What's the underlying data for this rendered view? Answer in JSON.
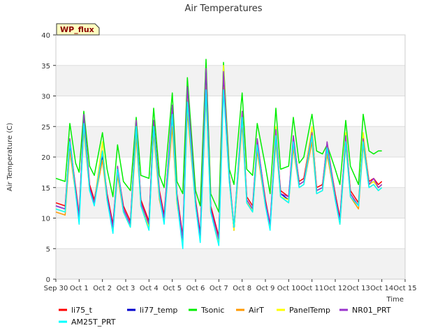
{
  "chart_data": {
    "type": "line",
    "title": "Air Temperatures",
    "xlabel": "Time",
    "ylabel": "Air Temperature (C)",
    "ylim": [
      0,
      40
    ],
    "xlim": [
      "Sep 30",
      "Oct 15"
    ],
    "yticks": [
      0,
      5,
      10,
      15,
      20,
      25,
      30,
      35,
      40
    ],
    "xticks": [
      "Sep 30",
      "Oct 1",
      "Oct 2",
      "Oct 3",
      "Oct 4",
      "Oct 5",
      "Oct 6",
      "Oct 7",
      "Oct 8",
      "Oct 9",
      "Oct 10",
      "Oct 11",
      "Oct 12",
      "Oct 13",
      "Oct 14",
      "Oct 15"
    ],
    "grid": "horizontal bands",
    "legend_position": "bottom",
    "badge": "WP_flux",
    "x_days": [
      0.0,
      0.4,
      0.6,
      0.85,
      1.0,
      1.2,
      1.45,
      1.65,
      2.0,
      2.2,
      2.45,
      2.65,
      2.9,
      3.2,
      3.45,
      3.65,
      4.0,
      4.2,
      4.45,
      4.65,
      5.0,
      5.2,
      5.45,
      5.65,
      6.0,
      6.2,
      6.45,
      6.65,
      7.0,
      7.2,
      7.45,
      7.65,
      8.0,
      8.2,
      8.45,
      8.65,
      9.0,
      9.2,
      9.45,
      9.65,
      10.0,
      10.2,
      10.45,
      10.65,
      11.0,
      11.2,
      11.45,
      11.65,
      12.0,
      12.2,
      12.45,
      12.65,
      13.0,
      13.2,
      13.45,
      13.65,
      13.85,
      14.0
    ],
    "series": [
      {
        "name": "li75_t",
        "color": "#ff0000",
        "values": [
          12.5,
          12.0,
          22.5,
          15.0,
          10.5,
          26.5,
          15.5,
          13.0,
          20.5,
          14.0,
          9.0,
          18.0,
          12.0,
          9.5,
          25.5,
          13.0,
          9.5,
          26.0,
          14.5,
          10.5,
          27.5,
          14.0,
          7.0,
          30.0,
          13.0,
          7.5,
          33.0,
          12.0,
          7.0,
          34.0,
          17.0,
          8.5,
          27.0,
          13.5,
          12.0,
          22.5,
          13.0,
          9.0,
          24.0,
          14.5,
          13.5,
          23.0,
          16.0,
          16.5,
          24.5,
          15.0,
          15.5,
          22.0,
          14.0,
          10.0,
          23.5,
          14.5,
          12.5,
          23.5,
          16.0,
          16.5,
          15.5,
          16.0
        ]
      },
      {
        "name": "li77_temp",
        "color": "#0000cc",
        "values": [
          12.0,
          11.5,
          22.0,
          14.5,
          10.0,
          26.0,
          15.0,
          12.5,
          20.0,
          13.5,
          8.5,
          17.5,
          11.5,
          9.0,
          25.0,
          12.5,
          9.0,
          25.5,
          14.0,
          10.0,
          27.0,
          13.5,
          6.5,
          29.5,
          12.5,
          7.0,
          32.5,
          11.5,
          6.5,
          33.5,
          16.5,
          8.0,
          26.5,
          13.0,
          11.5,
          22.0,
          12.5,
          8.5,
          23.5,
          14.0,
          13.0,
          22.5,
          15.5,
          16.0,
          24.0,
          14.5,
          15.0,
          21.5,
          13.5,
          9.5,
          23.0,
          14.0,
          12.0,
          23.0,
          15.5,
          16.0,
          15.0,
          15.5
        ]
      },
      {
        "name": "Tsonic",
        "color": "#00ee00",
        "values": [
          16.5,
          16.0,
          25.5,
          19.0,
          17.5,
          27.5,
          18.5,
          17.0,
          24.0,
          18.0,
          13.5,
          22.0,
          16.0,
          14.5,
          26.5,
          17.0,
          16.5,
          28.0,
          17.0,
          15.0,
          30.5,
          16.0,
          14.0,
          33.0,
          14.5,
          12.0,
          36.0,
          14.0,
          11.0,
          35.5,
          18.0,
          15.5,
          30.5,
          18.0,
          17.0,
          25.5,
          18.5,
          14.0,
          28.0,
          18.0,
          18.5,
          26.5,
          19.0,
          20.0,
          27.0,
          21.0,
          20.5,
          22.0,
          18.0,
          15.5,
          26.0,
          18.5,
          15.5,
          27.0,
          21.0,
          20.5,
          21.0,
          21.0
        ]
      },
      {
        "name": "AirT",
        "color": "#ff9900",
        "values": [
          11.0,
          10.5,
          21.0,
          14.0,
          10.0,
          24.5,
          14.5,
          12.5,
          19.5,
          13.0,
          8.0,
          17.0,
          11.0,
          8.5,
          23.5,
          12.0,
          8.5,
          24.0,
          13.0,
          9.5,
          25.0,
          12.5,
          6.5,
          27.5,
          12.0,
          6.5,
          30.0,
          11.0,
          6.0,
          31.5,
          16.0,
          8.0,
          25.5,
          12.5,
          11.0,
          21.0,
          12.0,
          8.5,
          22.5,
          13.5,
          12.5,
          21.5,
          15.0,
          15.5,
          22.5,
          14.0,
          14.5,
          20.5,
          13.0,
          9.0,
          22.0,
          13.5,
          11.5,
          22.0,
          15.0,
          15.5,
          14.5,
          15.0
        ]
      },
      {
        "name": "PanelTemp",
        "color": "#ffff00",
        "values": [
          11.5,
          11.0,
          23.0,
          14.0,
          10.0,
          26.0,
          14.5,
          12.5,
          22.5,
          13.0,
          8.0,
          18.5,
          11.0,
          8.5,
          26.0,
          12.0,
          8.5,
          25.5,
          13.5,
          9.5,
          28.0,
          12.5,
          6.0,
          31.0,
          12.0,
          6.5,
          34.5,
          11.0,
          6.0,
          35.0,
          16.5,
          8.0,
          27.5,
          13.0,
          11.0,
          23.0,
          12.0,
          8.5,
          25.0,
          13.5,
          13.0,
          23.5,
          15.5,
          16.0,
          25.0,
          14.5,
          15.0,
          22.5,
          13.5,
          9.0,
          24.0,
          14.0,
          12.0,
          24.0,
          15.5,
          16.0,
          15.0,
          15.5
        ]
      },
      {
        "name": "NR01_PRT",
        "color": "#9933cc",
        "values": [
          12.0,
          11.5,
          23.0,
          14.5,
          10.0,
          27.0,
          15.0,
          12.5,
          21.0,
          13.5,
          8.5,
          18.5,
          11.5,
          9.0,
          26.0,
          12.5,
          9.0,
          26.0,
          14.0,
          10.0,
          28.5,
          13.5,
          6.5,
          31.5,
          12.5,
          7.0,
          34.5,
          11.5,
          6.5,
          34.0,
          16.5,
          8.5,
          27.5,
          13.0,
          11.5,
          23.0,
          12.5,
          9.0,
          24.5,
          14.0,
          13.5,
          23.5,
          15.5,
          16.0,
          24.0,
          14.5,
          15.0,
          22.5,
          13.5,
          9.5,
          23.5,
          14.0,
          12.0,
          23.0,
          15.5,
          16.5,
          15.0,
          15.5
        ]
      },
      {
        "name": "AM25T_PRT",
        "color": "#00ffff",
        "values": [
          11.5,
          11.0,
          22.5,
          14.0,
          9.0,
          25.5,
          14.5,
          12.0,
          21.0,
          13.0,
          7.5,
          18.0,
          11.0,
          8.5,
          25.0,
          12.0,
          8.0,
          25.0,
          13.5,
          9.0,
          27.0,
          13.0,
          5.0,
          29.0,
          12.0,
          6.0,
          31.0,
          11.0,
          5.5,
          31.0,
          16.0,
          8.5,
          26.5,
          12.5,
          11.0,
          22.0,
          12.0,
          8.0,
          23.5,
          13.5,
          12.5,
          22.5,
          15.0,
          15.5,
          23.5,
          14.0,
          14.5,
          21.5,
          13.0,
          9.0,
          22.5,
          13.5,
          12.0,
          22.5,
          15.0,
          15.5,
          14.5,
          15.0
        ]
      }
    ]
  }
}
